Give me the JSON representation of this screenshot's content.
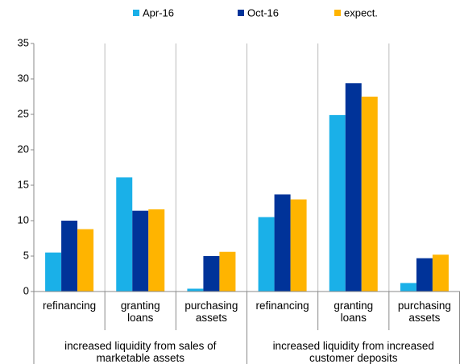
{
  "chart_data": {
    "type": "bar",
    "categories": [
      "refinancing",
      "granting loans",
      "purchasing assets",
      "refinancing",
      "granting loans",
      "purchasing assets"
    ],
    "category_groups": [
      "increased liquidity from sales of marketable assets",
      "increased liquidity from increased customer deposits"
    ],
    "series": [
      {
        "name": "Apr-16",
        "color": "#1ab0e8",
        "values": [
          5.5,
          16.1,
          0.4,
          10.5,
          24.9,
          1.2
        ]
      },
      {
        "name": "Oct-16",
        "color": "#003399",
        "values": [
          10.0,
          11.4,
          5.0,
          13.7,
          29.4,
          4.7
        ]
      },
      {
        "name": "expect.",
        "color": "#ffb400",
        "values": [
          8.8,
          11.6,
          5.6,
          13.0,
          27.5,
          5.2
        ]
      }
    ],
    "ylim": [
      0,
      35
    ],
    "yticks": [
      0,
      5,
      10,
      15,
      20,
      25,
      30,
      35
    ],
    "grid": false,
    "legend": "top"
  }
}
